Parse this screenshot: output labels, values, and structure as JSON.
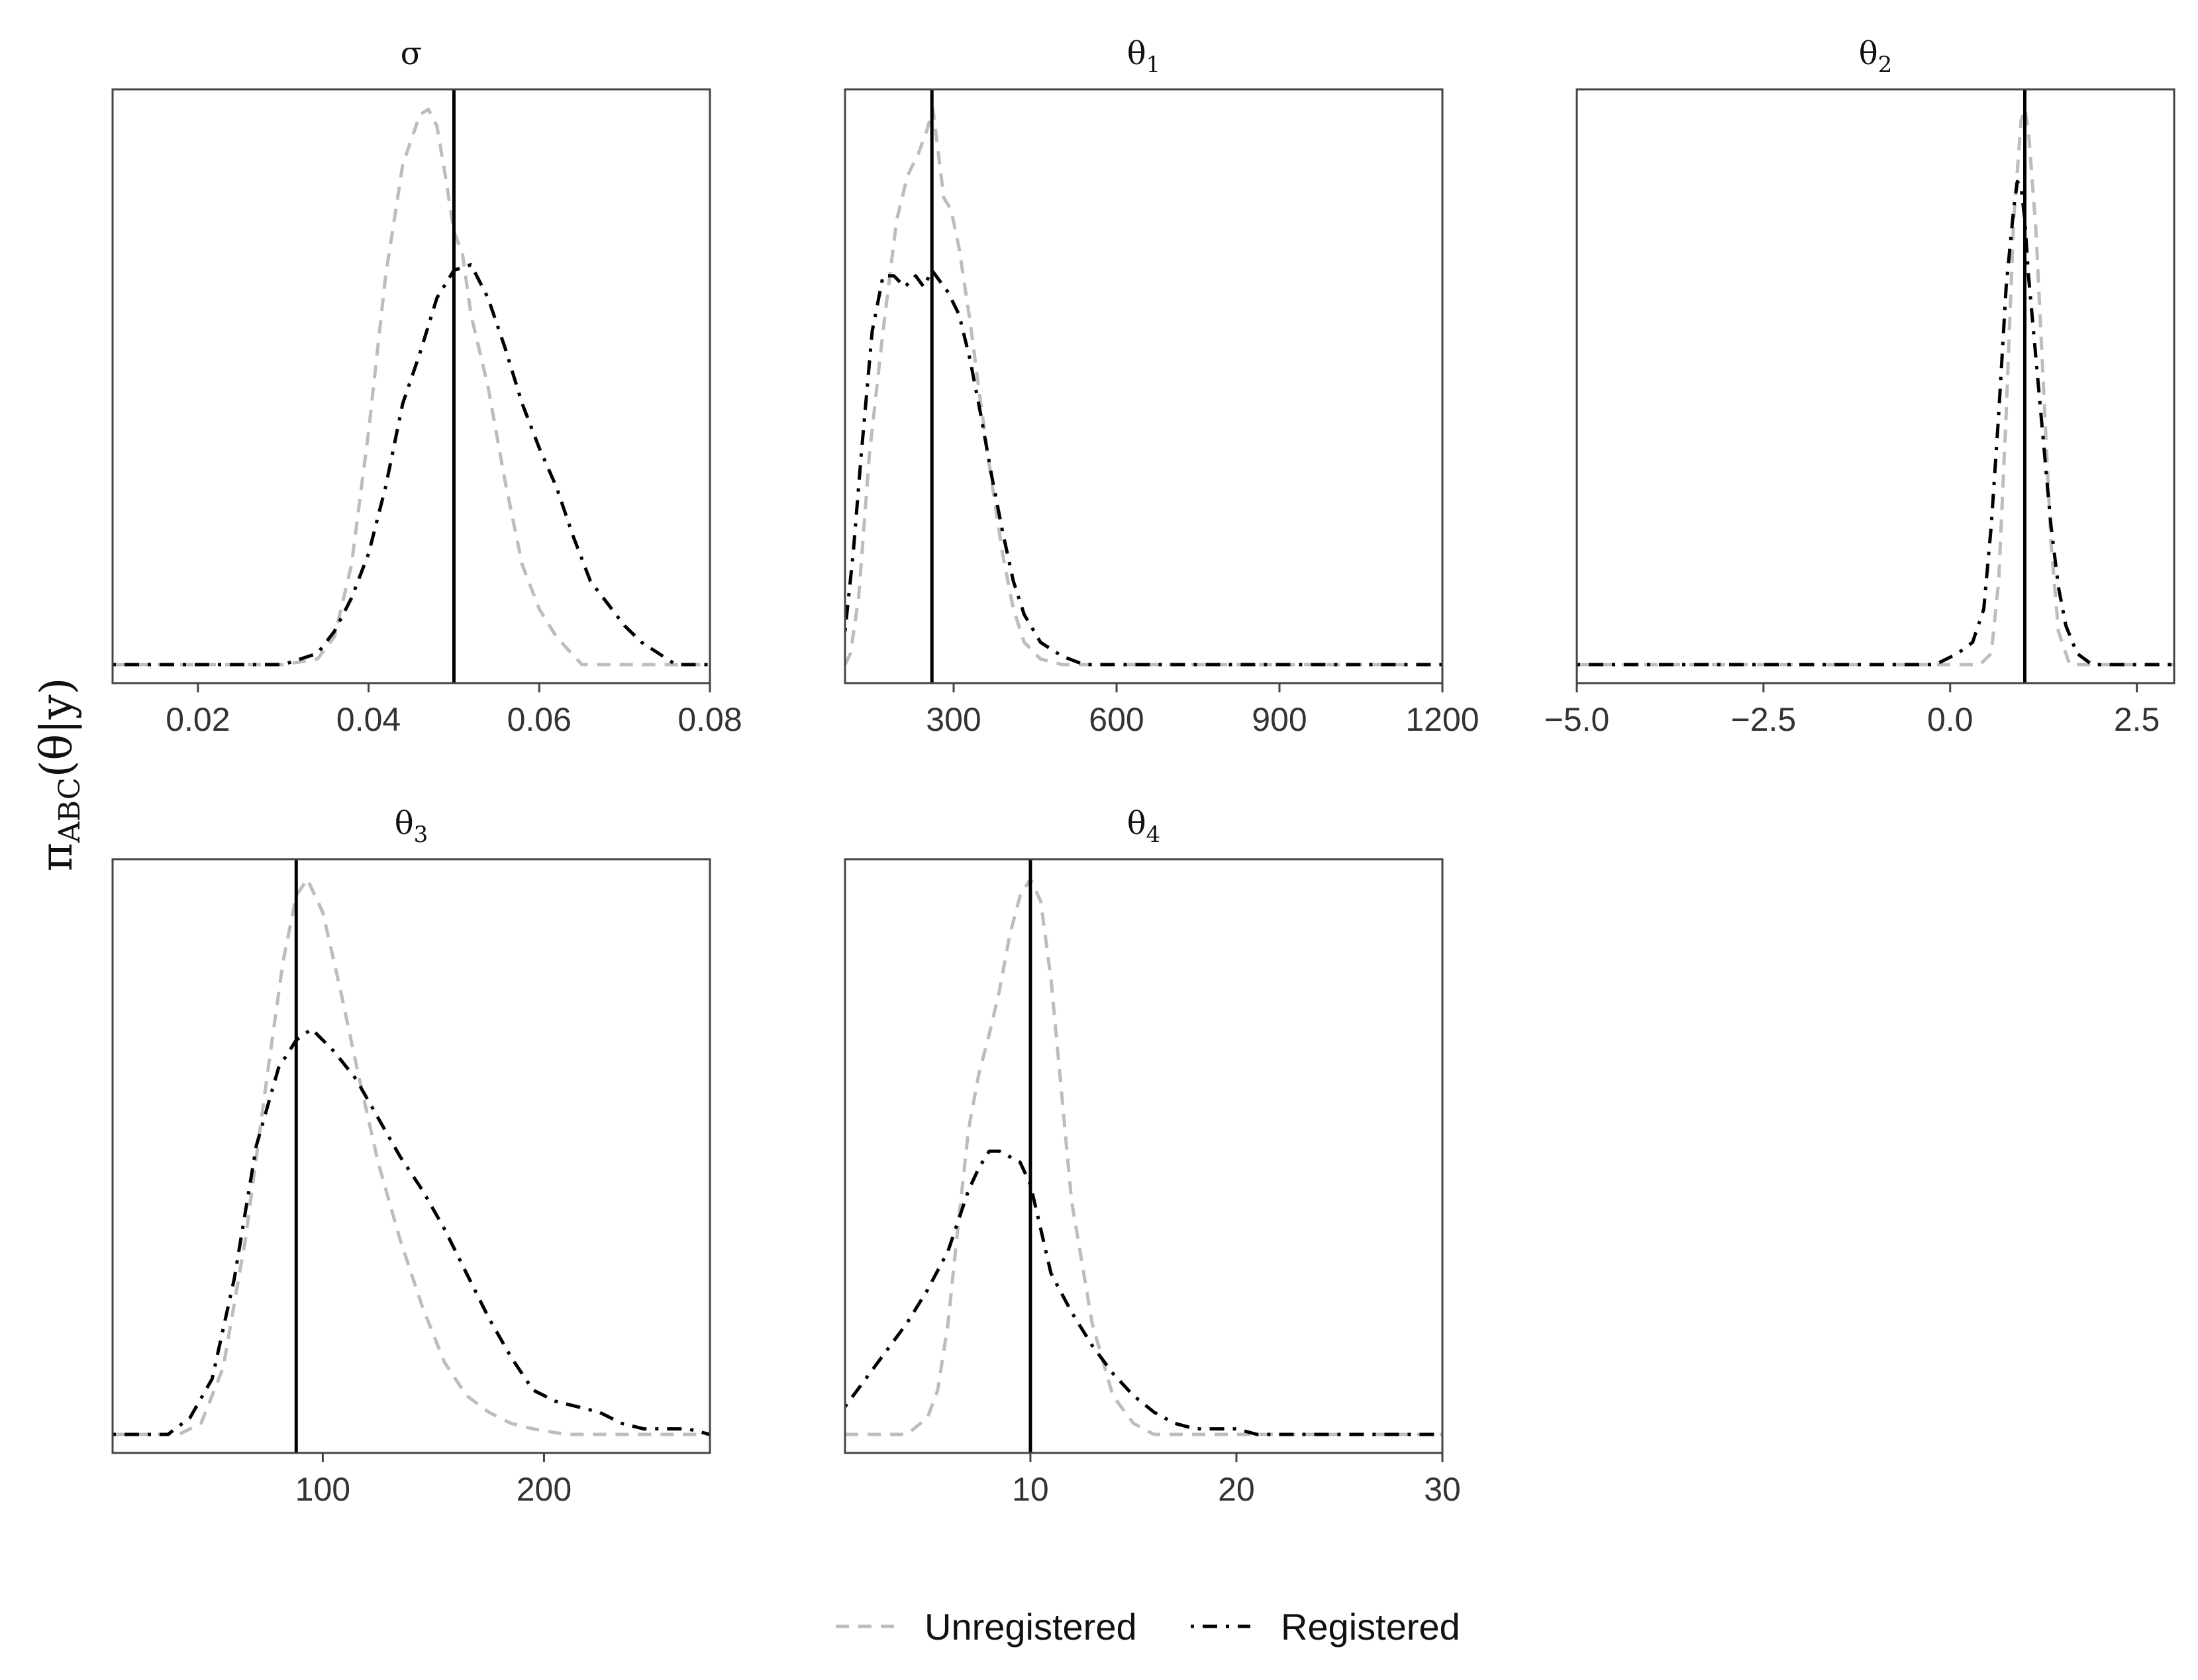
{
  "chart_data": {
    "type": "line",
    "ylabel": "πABC(θ|y)",
    "ylabel_parts": {
      "main": "π",
      "sub": "ABC",
      "arg": "(θ|y)"
    },
    "legend": {
      "position": "bottom",
      "entries": [
        {
          "label": "Unregistered",
          "color": "#bdbdbd",
          "dash": "dashed"
        },
        {
          "label": "Registered",
          "color": "#000000",
          "dash": "dotdash"
        }
      ]
    },
    "true_value_line": {
      "color": "#000000"
    },
    "panels": [
      {
        "title": "σ",
        "title_sym": "σ",
        "title_sub": "",
        "xlim": [
          0.01,
          0.08
        ],
        "ticks": [
          0.02,
          0.04,
          0.06,
          0.08
        ],
        "tick_labels": [
          "0.02",
          "0.04",
          "0.06",
          "0.08"
        ],
        "true_value": 0.05,
        "ymax": 1.0,
        "series": [
          {
            "name": "Unregistered",
            "x": [
              0.01,
              0.03,
              0.034,
              0.036,
              0.038,
              0.04,
              0.042,
              0.044,
              0.046,
              0.047,
              0.048,
              0.049,
              0.05,
              0.051,
              0.052,
              0.054,
              0.056,
              0.058,
              0.06,
              0.062,
              0.065,
              0.07,
              0.08
            ],
            "y": [
              0.0,
              0.0,
              0.01,
              0.05,
              0.18,
              0.42,
              0.7,
              0.9,
              0.99,
              1.0,
              0.97,
              0.88,
              0.78,
              0.74,
              0.63,
              0.5,
              0.33,
              0.18,
              0.1,
              0.05,
              0.0,
              0.0,
              0.0
            ]
          },
          {
            "name": "Registered",
            "x": [
              0.01,
              0.03,
              0.034,
              0.036,
              0.038,
              0.04,
              0.042,
              0.044,
              0.046,
              0.048,
              0.05,
              0.052,
              0.054,
              0.056,
              0.058,
              0.06,
              0.062,
              0.064,
              0.066,
              0.068,
              0.07,
              0.072,
              0.074,
              0.076,
              0.08
            ],
            "y": [
              0.0,
              0.0,
              0.02,
              0.06,
              0.12,
              0.2,
              0.32,
              0.47,
              0.56,
              0.66,
              0.71,
              0.72,
              0.66,
              0.57,
              0.47,
              0.39,
              0.32,
              0.23,
              0.15,
              0.11,
              0.07,
              0.04,
              0.02,
              0.0,
              0.0
            ]
          }
        ]
      },
      {
        "title": "θ1",
        "title_sym": "θ",
        "title_sub": "1",
        "xlim": [
          100,
          1200
        ],
        "ticks": [
          300,
          600,
          900,
          1200
        ],
        "tick_labels": [
          "300",
          "600",
          "900",
          "1200"
        ],
        "true_value": 260,
        "ymax": 1.0,
        "series": [
          {
            "name": "Unregistered",
            "x": [
              100,
              110,
              125,
              145,
              170,
              195,
              215,
              235,
              250,
              262,
              272,
              282,
              295,
              310,
              330,
              350,
              370,
              390,
              410,
              430,
              460,
              500,
              600,
              1200
            ],
            "y": [
              0.0,
              0.02,
              0.12,
              0.38,
              0.6,
              0.8,
              0.88,
              0.92,
              0.96,
              1.0,
              0.92,
              0.84,
              0.82,
              0.75,
              0.62,
              0.47,
              0.33,
              0.2,
              0.1,
              0.04,
              0.01,
              0.0,
              0.0,
              0.0
            ]
          },
          {
            "name": "Registered",
            "x": [
              100,
              115,
              130,
              150,
              170,
              190,
              210,
              230,
              245,
              260,
              275,
              290,
              310,
              330,
              350,
              370,
              390,
              410,
              430,
              460,
              500,
              540,
              600,
              1200
            ],
            "y": [
              0.06,
              0.2,
              0.38,
              0.6,
              0.7,
              0.7,
              0.68,
              0.7,
              0.68,
              0.71,
              0.69,
              0.67,
              0.63,
              0.55,
              0.45,
              0.34,
              0.24,
              0.15,
              0.09,
              0.04,
              0.015,
              0.0,
              0.0,
              0.0
            ]
          }
        ]
      },
      {
        "title": "θ2",
        "title_sym": "θ",
        "title_sub": "2",
        "xlim": [
          -5.0,
          3.0
        ],
        "ticks": [
          -5.0,
          -2.5,
          0.0,
          2.5
        ],
        "tick_labels": [
          "−5.0",
          "−2.5",
          "0.0",
          "2.5"
        ],
        "true_value": 1.0,
        "ymax": 1.0,
        "series": [
          {
            "name": "Unregistered",
            "x": [
              -5.0,
              0.4,
              0.55,
              0.65,
              0.75,
              0.85,
              0.95,
              1.0,
              1.05,
              1.15,
              1.25,
              1.35,
              1.45,
              1.6,
              3.0
            ],
            "y": [
              0.0,
              0.0,
              0.02,
              0.15,
              0.45,
              0.8,
              0.98,
              1.0,
              0.96,
              0.78,
              0.5,
              0.22,
              0.06,
              0.0,
              0.0
            ]
          },
          {
            "name": "Registered",
            "x": [
              -5.0,
              -0.2,
              0.1,
              0.3,
              0.45,
              0.55,
              0.65,
              0.75,
              0.85,
              0.9,
              0.95,
              1.0,
              1.05,
              1.15,
              1.25,
              1.35,
              1.45,
              1.55,
              1.7,
              1.9,
              3.0
            ],
            "y": [
              0.0,
              0.0,
              0.02,
              0.04,
              0.1,
              0.25,
              0.45,
              0.68,
              0.82,
              0.87,
              0.86,
              0.8,
              0.7,
              0.55,
              0.4,
              0.25,
              0.14,
              0.07,
              0.02,
              0.0,
              0.0
            ]
          }
        ]
      },
      {
        "title": "θ3",
        "title_sym": "θ",
        "title_sub": "3",
        "xlim": [
          5,
          275
        ],
        "ticks": [
          100,
          200
        ],
        "tick_labels": [
          "100",
          "200"
        ],
        "true_value": 88,
        "ymax": 1.0,
        "series": [
          {
            "name": "Unregistered",
            "x": [
              5,
              35,
              45,
              55,
              65,
              75,
              82,
              88,
              93,
              100,
              108,
              116,
              125,
              135,
              145,
              155,
              165,
              175,
              185,
              195,
              210,
              230,
              275
            ],
            "y": [
              0.0,
              0.0,
              0.02,
              0.12,
              0.35,
              0.65,
              0.85,
              0.97,
              1.0,
              0.94,
              0.8,
              0.65,
              0.49,
              0.35,
              0.23,
              0.13,
              0.07,
              0.04,
              0.02,
              0.01,
              0.0,
              0.0,
              0.0
            ]
          },
          {
            "name": "Registered",
            "x": [
              5,
              30,
              40,
              50,
              60,
              70,
              80,
              88,
              95,
              105,
              115,
              125,
              135,
              145,
              155,
              165,
              175,
              185,
              195,
              205,
              215,
              225,
              235,
              245,
              255,
              265,
              275
            ],
            "y": [
              0.0,
              0.0,
              0.03,
              0.1,
              0.28,
              0.52,
              0.66,
              0.71,
              0.73,
              0.69,
              0.64,
              0.57,
              0.5,
              0.44,
              0.37,
              0.29,
              0.21,
              0.14,
              0.08,
              0.06,
              0.05,
              0.04,
              0.02,
              0.01,
              0.01,
              0.01,
              0.0
            ]
          }
        ]
      },
      {
        "title": "θ4",
        "title_sym": "θ",
        "title_sub": "4",
        "xlim": [
          1,
          30
        ],
        "ticks": [
          10,
          20,
          30
        ],
        "tick_labels": [
          "10",
          "20",
          "30"
        ],
        "true_value": 10,
        "ymax": 1.0,
        "series": [
          {
            "name": "Unregistered",
            "x": [
              1,
              2,
              3,
              4,
              5,
              5.5,
              6,
              6.5,
              7,
              7.5,
              8,
              8.5,
              9,
              9.5,
              10,
              10.5,
              11,
              11.5,
              12,
              13,
              14,
              15,
              16,
              17,
              30
            ],
            "y": [
              0.0,
              0.0,
              0.0,
              0.0,
              0.03,
              0.08,
              0.2,
              0.38,
              0.55,
              0.65,
              0.72,
              0.8,
              0.9,
              0.97,
              1.0,
              0.96,
              0.82,
              0.62,
              0.42,
              0.2,
              0.07,
              0.02,
              0.0,
              0.0,
              0.0
            ]
          },
          {
            "name": "Registered",
            "x": [
              1,
              2,
              3,
              4,
              5,
              6,
              7,
              7.5,
              8,
              8.5,
              9,
              9.5,
              10,
              10.5,
              11,
              12,
              13,
              14,
              15,
              16,
              17,
              18,
              19,
              20,
              21,
              22,
              25,
              30
            ],
            "y": [
              0.05,
              0.1,
              0.15,
              0.2,
              0.26,
              0.33,
              0.44,
              0.48,
              0.51,
              0.51,
              0.5,
              0.49,
              0.45,
              0.37,
              0.29,
              0.22,
              0.16,
              0.11,
              0.07,
              0.04,
              0.02,
              0.01,
              0.01,
              0.01,
              0.0,
              0.0,
              0.0,
              0.0
            ]
          }
        ]
      }
    ]
  }
}
